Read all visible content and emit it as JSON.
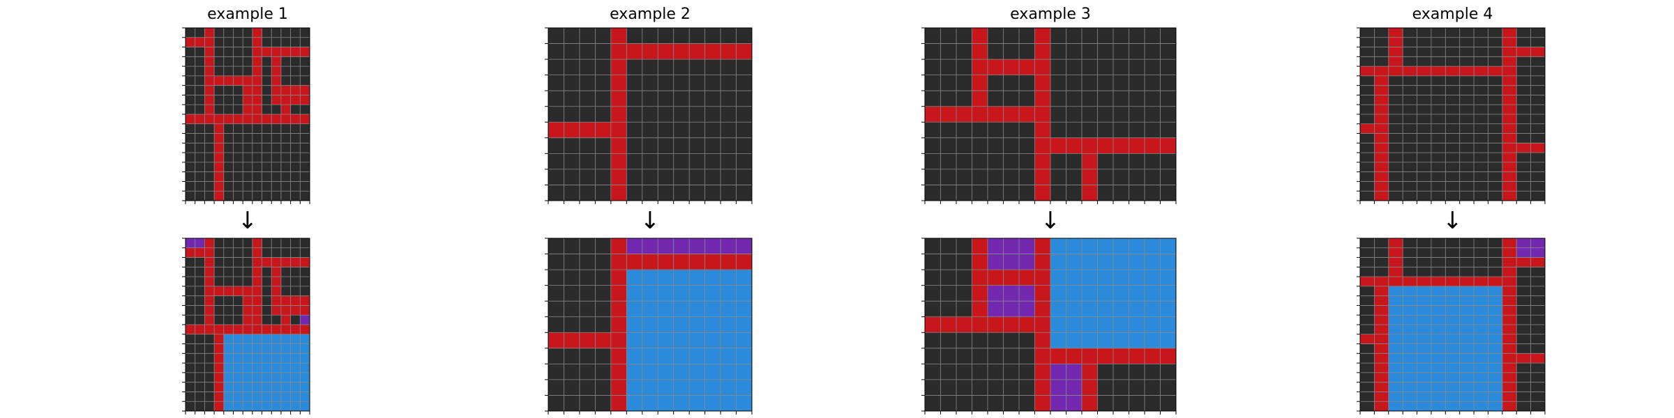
{
  "colors": {
    "black": "#2b2b2b",
    "red": "#c8161d",
    "purple": "#7328b0",
    "blue": "#2b8ad9",
    "gridline": "#8a8a8a"
  },
  "arrow_symbol": "↓",
  "examples": [
    {
      "title": "example 1",
      "input": [
        "0010000100000",
        "1110000100000",
        "0010000111111",
        "0010000101000",
        "0010000101000",
        "0011111101000",
        "0010001101111",
        "0010001101111",
        "0010001100100",
        "1111111111111",
        "0001000000000",
        "0001000000000",
        "0001000000000",
        "0001000000000",
        "0001000000000",
        "0001000000000",
        "0001000000000",
        "0001000000000"
      ],
      "output": [
        "2210000100000",
        "1110000100000",
        "0010000111111",
        "0010000101000",
        "0010000101000",
        "0011111101000",
        "0010001101111",
        "0010001101111",
        "0010001100102",
        "1111111111111",
        "0001333333333",
        "0001333333333",
        "0001333333333",
        "0001333333333",
        "0001333333333",
        "0001333333333",
        "0001333333333",
        "0001333333333"
      ]
    },
    {
      "title": "example 2",
      "input": [
        "0000100000000",
        "0000111111111",
        "0000100000000",
        "0000100000000",
        "0000100000000",
        "0000100000000",
        "1111100000000",
        "0000100000000",
        "0000100000000",
        "0000100000000",
        "0000100000000"
      ],
      "output": [
        "0000122222222",
        "0000111111111",
        "0000133333333",
        "0000133333333",
        "0000133333333",
        "0000133333333",
        "1111133333333",
        "0000133333333",
        "0000133333333",
        "0000133333333",
        "0000133333333"
      ]
    },
    {
      "title": "example 3",
      "input": [
        "0001000100000000",
        "0001000100000000",
        "0001111100000000",
        "0001000100000000",
        "0001000100000000",
        "1111111100000000",
        "0000000100000000",
        "0000000111111111",
        "0000000100100000",
        "0000000100100000",
        "0000000100100000"
      ],
      "output": [
        "0001222133333333",
        "0001222133333333",
        "0001111133333333",
        "0001222133333333",
        "0001222133333333",
        "1111111133333333",
        "0000000133333333",
        "0000000111111111",
        "0000000122100000",
        "0000000122100000",
        "0000000122100000"
      ]
    },
    {
      "title": "example 4",
      "input": [
        "0010000000100",
        "0010000000100",
        "0010000000111",
        "0010000000100",
        "1111111111100",
        "0100000000100",
        "0100000000100",
        "0100000000100",
        "0100000000100",
        "0100000000100",
        "1100000000100",
        "0100000000100",
        "0100000000111",
        "0100000000100",
        "0100000000100",
        "0100000000100",
        "0100000000100",
        "0100000000100"
      ],
      "output": [
        "0010000000122",
        "0010000000122",
        "0010000000111",
        "0010000000100",
        "1111111111100",
        "0133333333100",
        "0133333333100",
        "0133333333100",
        "0133333333100",
        "0133333333100",
        "1133333333100",
        "0133333333100",
        "0133333333111",
        "0133333333100",
        "0133333333100",
        "0133333333100",
        "0133333333100",
        "0133333333100"
      ]
    }
  ]
}
